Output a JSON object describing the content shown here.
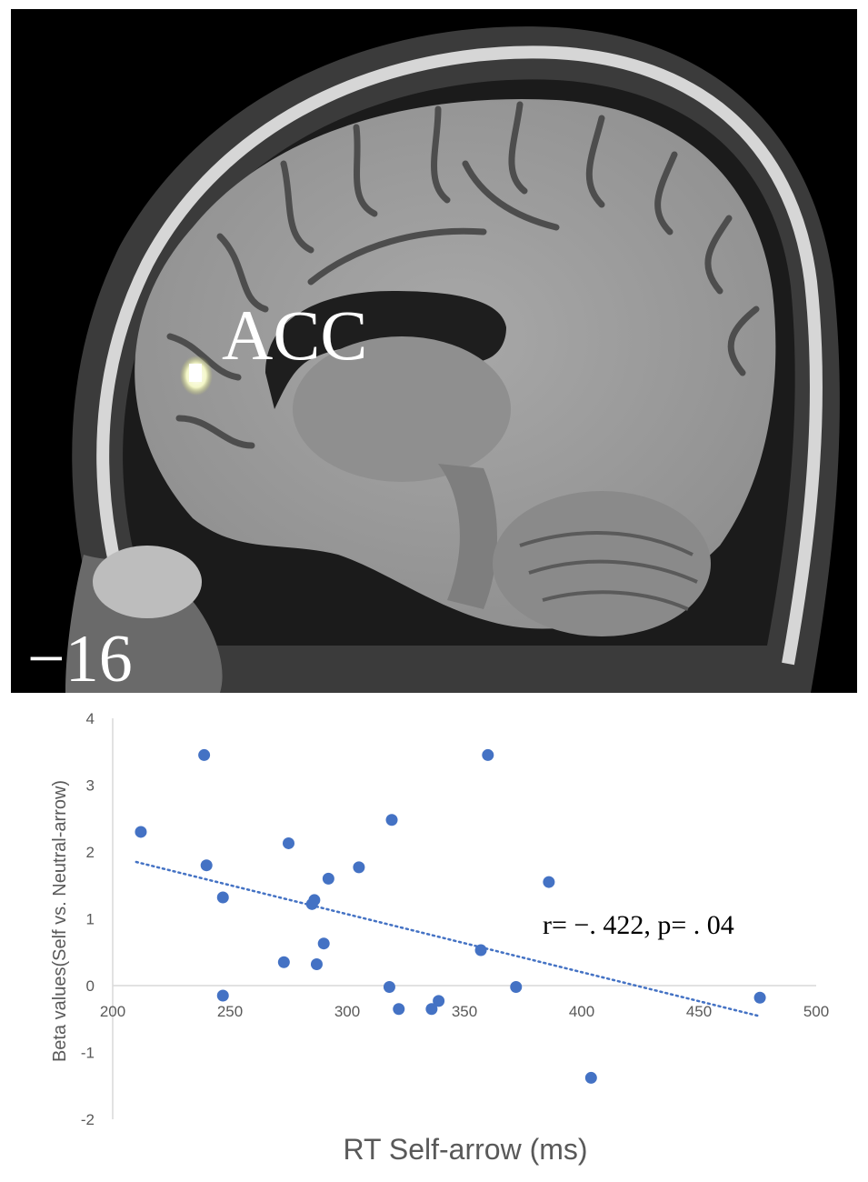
{
  "mri": {
    "region_label": "ACC",
    "slice_label": "−16"
  },
  "chart_data": {
    "type": "scatter",
    "xlabel": "RT Self-arrow (ms)",
    "ylabel": "Beta values(Self vs. Neutral-arrow)",
    "xlim": [
      200,
      500
    ],
    "ylim": [
      -2,
      4
    ],
    "x_ticks": [
      "200",
      "250",
      "300",
      "350",
      "400",
      "450",
      "500"
    ],
    "y_ticks": [
      "-2",
      "-1",
      "0",
      "1",
      "2",
      "3",
      "4"
    ],
    "annotation": "r= −. 422, p= . 04",
    "grid": false,
    "marker_color": "#4472c4",
    "trendline": {
      "style": "dotted",
      "color": "#4472c4",
      "x": [
        210,
        475
      ],
      "y": [
        1.85,
        -0.45
      ]
    },
    "points": [
      {
        "x": 212,
        "y": 2.3
      },
      {
        "x": 239,
        "y": 3.45
      },
      {
        "x": 240,
        "y": 1.8
      },
      {
        "x": 247,
        "y": 1.32
      },
      {
        "x": 247,
        "y": -0.15
      },
      {
        "x": 273,
        "y": 0.35
      },
      {
        "x": 275,
        "y": 2.13
      },
      {
        "x": 285,
        "y": 1.22
      },
      {
        "x": 286,
        "y": 1.28
      },
      {
        "x": 287,
        "y": 0.32
      },
      {
        "x": 290,
        "y": 0.63
      },
      {
        "x": 292,
        "y": 1.6
      },
      {
        "x": 305,
        "y": 1.77
      },
      {
        "x": 318,
        "y": -0.02
      },
      {
        "x": 319,
        "y": 2.48
      },
      {
        "x": 322,
        "y": -0.35
      },
      {
        "x": 336,
        "y": -0.35
      },
      {
        "x": 339,
        "y": -0.23
      },
      {
        "x": 357,
        "y": 0.53
      },
      {
        "x": 360,
        "y": 3.45
      },
      {
        "x": 372,
        "y": -0.02
      },
      {
        "x": 386,
        "y": 1.55
      },
      {
        "x": 404,
        "y": -1.38
      },
      {
        "x": 476,
        "y": -0.18
      }
    ]
  }
}
